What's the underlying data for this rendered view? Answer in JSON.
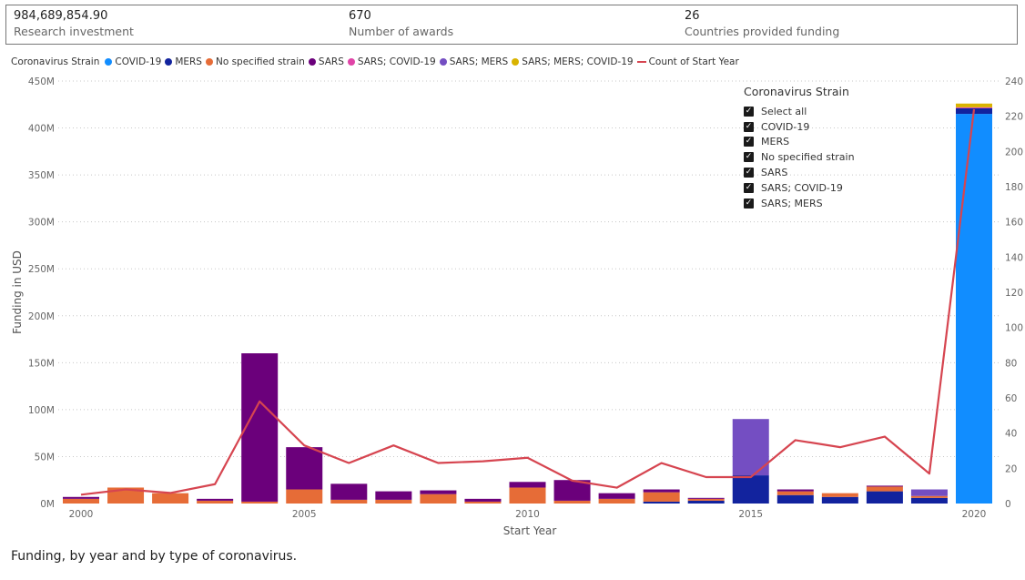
{
  "kpis": [
    {
      "value": "984,689,854.90",
      "label": "Research investment"
    },
    {
      "value": "670",
      "label": "Number of awards"
    },
    {
      "value": "26",
      "label": "Countries provided funding"
    }
  ],
  "legend": {
    "title": "Coronavirus Strain",
    "items": [
      {
        "label": "COVID-19",
        "color": "#118DFF",
        "kind": "dot"
      },
      {
        "label": "MERS",
        "color": "#12239E",
        "kind": "dot"
      },
      {
        "label": "No specified strain",
        "color": "#E66C37",
        "kind": "dot"
      },
      {
        "label": "SARS",
        "color": "#6B007B",
        "kind": "dot"
      },
      {
        "label": "SARS; COVID-19",
        "color": "#E044A7",
        "kind": "dot"
      },
      {
        "label": "SARS; MERS",
        "color": "#744EC2",
        "kind": "dot"
      },
      {
        "label": "SARS; MERS; COVID-19",
        "color": "#D9B300",
        "kind": "dot"
      },
      {
        "label": "Count of Start Year",
        "color": "#D64550",
        "kind": "line"
      }
    ]
  },
  "slicer": {
    "title": "Coronavirus Strain",
    "items": [
      "Select all",
      "COVID-19",
      "MERS",
      "No specified strain",
      "SARS",
      "SARS; COVID-19",
      "SARS; MERS"
    ]
  },
  "chart_data": {
    "type": "bar",
    "stacked": true,
    "xlabel": "Start Year",
    "ylabel": "Funding in USD",
    "ylim": [
      0,
      450000000
    ],
    "y2lim": [
      0,
      240
    ],
    "x_ticks": [
      "2000",
      "2005",
      "2010",
      "2015",
      "2020"
    ],
    "y_ticks": [
      "0M",
      "50M",
      "100M",
      "150M",
      "200M",
      "250M",
      "300M",
      "350M",
      "400M",
      "450M"
    ],
    "y2_ticks": [
      "0",
      "20",
      "40",
      "60",
      "80",
      "100",
      "120",
      "140",
      "160",
      "180",
      "200",
      "220",
      "240"
    ],
    "grid": true,
    "categories": [
      2000,
      2001,
      2002,
      2003,
      2004,
      2005,
      2006,
      2007,
      2008,
      2009,
      2010,
      2011,
      2012,
      2013,
      2014,
      2015,
      2016,
      2017,
      2018,
      2019,
      2020
    ],
    "series": [
      {
        "name": "COVID-19",
        "color": "#118DFF",
        "values": [
          0,
          0,
          0,
          0,
          0,
          0,
          0,
          0,
          0,
          0,
          0,
          0,
          0,
          0,
          0,
          0,
          0,
          0,
          0,
          0,
          415000000
        ]
      },
      {
        "name": "MERS",
        "color": "#12239E",
        "values": [
          0,
          0,
          0,
          0,
          0,
          0,
          0,
          0,
          0,
          0,
          0,
          0,
          0,
          2000000,
          3000000,
          30000000,
          9000000,
          7000000,
          13000000,
          6000000,
          6000000
        ]
      },
      {
        "name": "No specified strain",
        "color": "#E66C37",
        "values": [
          5000000,
          17000000,
          11000000,
          3000000,
          2000000,
          15000000,
          4000000,
          4000000,
          10000000,
          2000000,
          17000000,
          3000000,
          5000000,
          10000000,
          2000000,
          0,
          4000000,
          4000000,
          5000000,
          2000000,
          0
        ]
      },
      {
        "name": "SARS",
        "color": "#6B007B",
        "values": [
          2000000,
          0,
          0,
          2000000,
          158000000,
          45000000,
          17000000,
          9000000,
          4000000,
          3000000,
          6000000,
          22000000,
          6000000,
          3000000,
          1000000,
          0,
          2000000,
          0,
          1000000,
          0,
          0
        ]
      },
      {
        "name": "SARS; COVID-19",
        "color": "#E044A7",
        "values": [
          0,
          0,
          0,
          0,
          0,
          0,
          0,
          0,
          0,
          0,
          0,
          0,
          0,
          0,
          0,
          0,
          0,
          0,
          0,
          0,
          1000000
        ]
      },
      {
        "name": "SARS; MERS",
        "color": "#744EC2",
        "values": [
          0,
          0,
          0,
          0,
          0,
          0,
          0,
          0,
          0,
          0,
          0,
          0,
          0,
          0,
          0,
          60000000,
          0,
          0,
          0,
          7000000,
          0
        ]
      },
      {
        "name": "SARS; MERS; COVID-19",
        "color": "#D9B300",
        "values": [
          0,
          0,
          0,
          0,
          0,
          0,
          0,
          0,
          0,
          0,
          0,
          0,
          0,
          0,
          0,
          0,
          0,
          0,
          0,
          0,
          4000000
        ]
      }
    ],
    "line": {
      "name": "Count of Start Year",
      "color": "#D64550",
      "axis": "right",
      "values": [
        5,
        8,
        6,
        11,
        58,
        33,
        23,
        33,
        23,
        24,
        26,
        13,
        9,
        23,
        15,
        15,
        36,
        32,
        38,
        17,
        224
      ]
    }
  },
  "caption": "Funding, by year and by type of coronavirus."
}
